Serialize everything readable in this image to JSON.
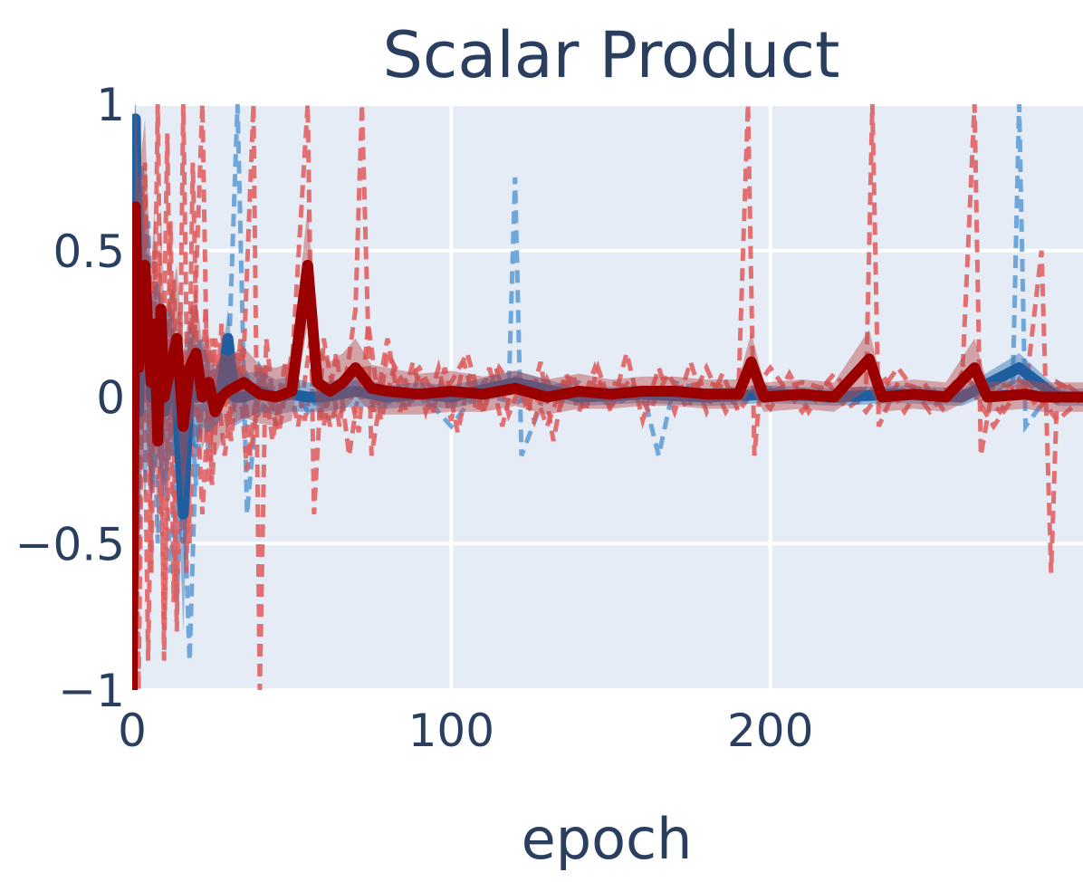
{
  "chart_data": {
    "type": "line",
    "title": "Scalar Product",
    "xlabel": "epoch",
    "ylabel": "",
    "xlim": [
      0,
      298
    ],
    "ylim": [
      -1,
      1
    ],
    "x_ticks": [
      {
        "value": 0,
        "label": "0"
      },
      {
        "value": 100,
        "label": "100"
      },
      {
        "value": 200,
        "label": "200"
      }
    ],
    "y_ticks": [
      {
        "value": 1,
        "label": "1"
      },
      {
        "value": 0.5,
        "label": "0.5"
      },
      {
        "value": 0,
        "label": "0"
      },
      {
        "value": -0.5,
        "label": "−0.5"
      },
      {
        "value": -1,
        "label": "−1"
      }
    ],
    "grid": true,
    "legend": "none",
    "colors": {
      "plot_bg": "#e5ecf6",
      "grid": "#ffffff",
      "text": "#2a3f5f",
      "blue_mean": "#1f5fa0",
      "blue_band": "#2d6db0",
      "blue_dashed": "#5b9bd5",
      "red_mean": "#9b0000",
      "red_band": "#b84a4a",
      "red_dashed": "#e05a5a"
    },
    "series": [
      {
        "style": "mean-with-band",
        "color": "blue",
        "x": [
          0,
          1,
          2,
          3,
          4,
          5,
          6,
          8,
          10,
          12,
          14,
          16,
          18,
          20,
          22,
          24,
          26,
          28,
          30,
          32,
          35,
          40,
          45,
          50,
          55,
          60,
          70,
          80,
          90,
          100,
          120,
          140,
          160,
          180,
          200,
          220,
          240,
          260,
          278,
          290,
          298
        ],
        "y": [
          0.0,
          0.95,
          -0.05,
          0.3,
          0.1,
          0.2,
          0.0,
          0.1,
          -0.05,
          0.05,
          0.0,
          -0.4,
          0.05,
          0.0,
          0.05,
          0.0,
          0.0,
          0.03,
          0.2,
          0.0,
          0.0,
          0.02,
          0.0,
          0.01,
          0.0,
          0.0,
          0.02,
          0.0,
          0.01,
          0.0,
          0.05,
          0.0,
          0.01,
          0.0,
          0.01,
          0.0,
          0.01,
          0.0,
          0.1,
          0.0,
          0.0
        ],
        "band": [
          0.3,
          0.9,
          0.6,
          0.5,
          0.45,
          0.4,
          0.35,
          0.3,
          0.3,
          0.25,
          0.2,
          0.4,
          0.2,
          0.18,
          0.15,
          0.12,
          0.1,
          0.1,
          0.1,
          0.1,
          0.08,
          0.07,
          0.06,
          0.06,
          0.05,
          0.05,
          0.05,
          0.04,
          0.04,
          0.04,
          0.04,
          0.03,
          0.03,
          0.03,
          0.03,
          0.03,
          0.03,
          0.03,
          0.05,
          0.03,
          0.03
        ]
      },
      {
        "style": "mean-with-band",
        "color": "red",
        "x": [
          0,
          1,
          2,
          3,
          4,
          5,
          6,
          7,
          8,
          9,
          10,
          12,
          14,
          16,
          18,
          20,
          22,
          24,
          26,
          28,
          30,
          35,
          40,
          45,
          50,
          55,
          58,
          62,
          66,
          70,
          75,
          80,
          90,
          100,
          110,
          120,
          130,
          140,
          150,
          160,
          170,
          180,
          190,
          194,
          198,
          210,
          220,
          231,
          235,
          245,
          255,
          264,
          268,
          280,
          285,
          290,
          298
        ],
        "y": [
          -1,
          0.65,
          0.1,
          0.3,
          0.45,
          0.2,
          0.05,
          0.25,
          -0.15,
          0.3,
          0.0,
          0.1,
          0.2,
          -0.1,
          0.1,
          0.15,
          0.0,
          0.05,
          -0.05,
          0.0,
          0.02,
          0.05,
          0.01,
          0.0,
          0.02,
          0.45,
          0.05,
          0.02,
          0.05,
          0.1,
          0.03,
          0.02,
          0.01,
          0.02,
          0.01,
          0.03,
          0.0,
          0.02,
          0.01,
          0.02,
          0.02,
          0.01,
          0.01,
          0.12,
          0.0,
          0.01,
          0.0,
          0.13,
          0.0,
          0.01,
          0.0,
          0.1,
          0.0,
          0.01,
          0.0,
          0.0,
          0.0
        ],
        "band": [
          0.5,
          0.6,
          0.6,
          0.55,
          0.5,
          0.45,
          0.4,
          0.4,
          0.35,
          0.35,
          0.3,
          0.25,
          0.25,
          0.25,
          0.2,
          0.2,
          0.18,
          0.15,
          0.15,
          0.15,
          0.12,
          0.12,
          0.1,
          0.1,
          0.1,
          0.2,
          0.12,
          0.1,
          0.1,
          0.1,
          0.08,
          0.08,
          0.07,
          0.07,
          0.06,
          0.06,
          0.06,
          0.06,
          0.05,
          0.05,
          0.05,
          0.05,
          0.05,
          0.1,
          0.05,
          0.05,
          0.05,
          0.1,
          0.05,
          0.05,
          0.05,
          0.1,
          0.05,
          0.05,
          0.05,
          0.05,
          0.05
        ]
      },
      {
        "style": "dashed",
        "color": "blue",
        "x": [
          0,
          3,
          6,
          9,
          12,
          15,
          18,
          21,
          24,
          27,
          30,
          33,
          36,
          40,
          45,
          50,
          55,
          60,
          70,
          80,
          90,
          100,
          110,
          118,
          120,
          122,
          130,
          140,
          150,
          160,
          165,
          170,
          180,
          190,
          200,
          210,
          220,
          230,
          240,
          250,
          260,
          270,
          276,
          278,
          280,
          290,
          298
        ],
        "y": [
          0.2,
          0.8,
          -0.3,
          0.1,
          -0.6,
          0.05,
          -0.9,
          0.2,
          -0.2,
          0.1,
          0.05,
          1.0,
          -0.4,
          0.1,
          0.0,
          0.05,
          -0.05,
          0.02,
          0.05,
          -0.02,
          0.02,
          -0.1,
          0.05,
          0.02,
          0.75,
          -0.2,
          0.03,
          0.05,
          -0.03,
          0.02,
          -0.2,
          0.05,
          0.02,
          -0.02,
          0.03,
          0.01,
          -0.02,
          0.03,
          0.02,
          -0.01,
          0.02,
          0.01,
          0.05,
          1.0,
          -0.1,
          0.05,
          0.0
        ]
      },
      {
        "style": "dashed",
        "color": "blue",
        "x": [
          0,
          2,
          5,
          8,
          11,
          14,
          17,
          20,
          23,
          26,
          29,
          32,
          35,
          40,
          45,
          50,
          60,
          70,
          80,
          90,
          100,
          110,
          120,
          130,
          140,
          150,
          160,
          170,
          180,
          190,
          200,
          210,
          220,
          230,
          240,
          250,
          260,
          270,
          280,
          290,
          298
        ],
        "y": [
          -0.3,
          0.4,
          0.6,
          -0.5,
          0.3,
          -0.7,
          0.2,
          -0.3,
          0.15,
          -0.1,
          0.08,
          -0.05,
          0.1,
          -0.05,
          0.05,
          0.02,
          -0.03,
          0.05,
          0.02,
          -0.02,
          0.03,
          0.01,
          -0.02,
          0.02,
          0.03,
          -0.02,
          0.03,
          0.01,
          -0.01,
          0.02,
          0.01,
          -0.01,
          0.02,
          0.01,
          0.03,
          -0.01,
          0.02,
          0.0,
          0.05,
          0.02,
          0.0
        ]
      },
      {
        "style": "dashed",
        "color": "red",
        "x": [
          0,
          2,
          4,
          6,
          8,
          10,
          12,
          14,
          16,
          18,
          20,
          22,
          24,
          26,
          30,
          35,
          38,
          40,
          42,
          45,
          50,
          55,
          57,
          60,
          65,
          70,
          72,
          75,
          80,
          85,
          90,
          95,
          100,
          105,
          110,
          115,
          120,
          125,
          130,
          135,
          140,
          150,
          160,
          170,
          180,
          190,
          193,
          195,
          197,
          200,
          210,
          220,
          230,
          232,
          234,
          240,
          250,
          260,
          264,
          266,
          270,
          280,
          285,
          288,
          290,
          295,
          298
        ],
        "y": [
          0.9,
          -1,
          0.8,
          -0.6,
          1.0,
          -0.9,
          0.6,
          -0.8,
          1.0,
          -0.5,
          0.4,
          1.0,
          -0.3,
          0.2,
          -0.1,
          0.15,
          1.0,
          -1,
          0.2,
          -0.1,
          0.1,
          1.0,
          -0.4,
          0.2,
          -0.1,
          0.3,
          1.0,
          -0.2,
          0.15,
          0.05,
          0.1,
          0.0,
          0.05,
          0.15,
          -0.05,
          0.1,
          0.02,
          0.05,
          -0.1,
          0.05,
          0.02,
          0.05,
          0.02,
          0.03,
          0.05,
          0.02,
          1.0,
          -0.2,
          0.05,
          0.02,
          0.05,
          0.02,
          0.03,
          1.0,
          -0.1,
          0.05,
          0.02,
          0.03,
          1.0,
          -0.2,
          0.05,
          0.02,
          0.5,
          -0.6,
          0.05,
          0.02,
          0.0
        ]
      },
      {
        "style": "dashed",
        "color": "red",
        "x": [
          0,
          3,
          5,
          7,
          9,
          11,
          13,
          15,
          17,
          19,
          21,
          23,
          25,
          28,
          31,
          34,
          37,
          41,
          44,
          48,
          52,
          56,
          60,
          64,
          68,
          72,
          76,
          80,
          84,
          88,
          92,
          96,
          100,
          104,
          108,
          112,
          116,
          120,
          124,
          128,
          132,
          136,
          140,
          145,
          150,
          155,
          160,
          165,
          170,
          175,
          180,
          185,
          190,
          200,
          210,
          220,
          230,
          240,
          250,
          260,
          270,
          280,
          290,
          298
        ],
        "y": [
          -0.8,
          0.7,
          -0.9,
          0.5,
          -0.4,
          0.9,
          -0.7,
          0.3,
          -0.6,
          0.8,
          -0.2,
          0.3,
          -0.3,
          0.25,
          -0.15,
          0.2,
          -0.2,
          0.1,
          -0.15,
          0.12,
          -0.1,
          0.2,
          -0.1,
          0.15,
          -0.2,
          0.1,
          -0.05,
          0.2,
          -0.05,
          0.12,
          -0.05,
          0.1,
          -0.08,
          0.12,
          -0.05,
          0.1,
          -0.1,
          0.08,
          -0.05,
          0.12,
          -0.15,
          0.08,
          -0.05,
          0.1,
          -0.05,
          0.15,
          -0.08,
          0.1,
          -0.05,
          0.12,
          -0.05,
          0.08,
          -0.05,
          0.1,
          -0.05,
          0.08,
          -0.05,
          0.1,
          -0.05,
          0.08,
          -0.1,
          0.06,
          -0.08,
          0.0
        ]
      },
      {
        "style": "dashed",
        "color": "red",
        "x": [
          0,
          2,
          4,
          6,
          8,
          10,
          13,
          16,
          19,
          22,
          25,
          29,
          33,
          36,
          40,
          46,
          50,
          54,
          58,
          62,
          67,
          71,
          74,
          78,
          82,
          86,
          90,
          94,
          98,
          102,
          106,
          110,
          114,
          118,
          122,
          126,
          130,
          134,
          138,
          142,
          146,
          150,
          156,
          162,
          168,
          174,
          180,
          186,
          192,
          200,
          206,
          212,
          218,
          224,
          236,
          242,
          248,
          254,
          260,
          272,
          278,
          284,
          292,
          298
        ],
        "y": [
          0.4,
          -0.6,
          0.7,
          -0.3,
          0.5,
          -0.8,
          0.4,
          -0.5,
          0.3,
          -0.4,
          0.2,
          -0.2,
          0.15,
          -0.25,
          0.1,
          -0.12,
          0.15,
          -0.08,
          0.12,
          -0.1,
          0.08,
          -0.12,
          0.25,
          -0.08,
          0.1,
          -0.05,
          0.08,
          -0.06,
          0.1,
          -0.12,
          0.08,
          -0.05,
          0.1,
          -0.06,
          0.05,
          -0.08,
          0.06,
          -0.04,
          0.08,
          -0.05,
          0.1,
          -0.03,
          0.06,
          -0.05,
          0.08,
          -0.04,
          0.1,
          -0.05,
          0.06,
          -0.04,
          0.08,
          -0.05,
          0.05,
          -0.04,
          0.06,
          -0.05,
          0.05,
          -0.04,
          0.08,
          -0.05,
          0.06,
          -0.04,
          0.05,
          0.0
        ]
      }
    ]
  }
}
